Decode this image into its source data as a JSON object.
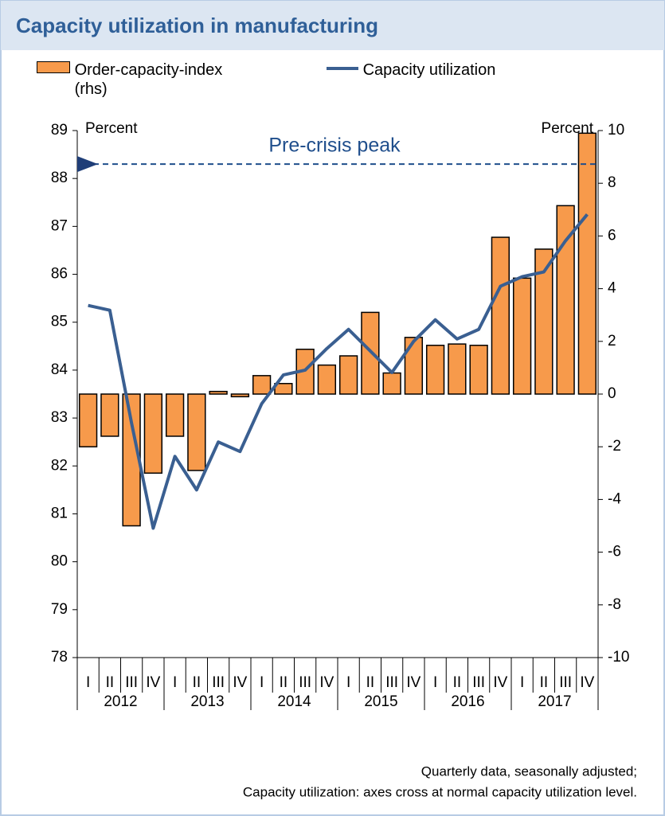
{
  "chart_data": {
    "type": "bar-line",
    "title": "Capacity utilization in manufacturing",
    "ylabel": "Percent",
    "y2label": "Percent",
    "categories": [
      "I",
      "II",
      "III",
      "IV",
      "I",
      "II",
      "III",
      "IV",
      "I",
      "II",
      "III",
      "IV",
      "I",
      "II",
      "III",
      "IV",
      "I",
      "II",
      "III",
      "IV",
      "I",
      "II",
      "III",
      "IV"
    ],
    "year_groups": [
      "2012",
      "2013",
      "2014",
      "2015",
      "2016",
      "2017"
    ],
    "series": [
      {
        "name": "Order-capacity-index (rhs)",
        "type": "bar",
        "axis": "y2",
        "color": "#f79a4b",
        "values": [
          -2.0,
          -1.6,
          -5.0,
          -3.0,
          -1.6,
          -2.9,
          0.1,
          -0.1,
          0.7,
          0.4,
          1.7,
          1.1,
          1.45,
          3.1,
          0.8,
          2.15,
          1.85,
          1.9,
          1.85,
          5.95,
          4.4,
          5.5,
          7.15,
          9.9
        ]
      },
      {
        "name": "Capacity utilization",
        "type": "line",
        "axis": "y",
        "color": "#3a5f91",
        "values": [
          85.35,
          85.25,
          82.9,
          80.7,
          82.2,
          81.5,
          82.5,
          82.3,
          83.3,
          83.9,
          84.0,
          84.45,
          84.85,
          84.4,
          83.95,
          84.6,
          85.05,
          84.65,
          84.85,
          85.75,
          85.95,
          86.05,
          86.7,
          87.25
        ]
      }
    ],
    "ylim": [
      78,
      89
    ],
    "yticks": [
      78,
      79,
      80,
      81,
      82,
      83,
      84,
      85,
      86,
      87,
      88,
      89
    ],
    "y2lim": [
      -10,
      10
    ],
    "y2ticks": [
      -10,
      -8,
      -6,
      -4,
      -2,
      0,
      2,
      4,
      6,
      8,
      10
    ],
    "reference_line": {
      "label": "Pre-crisis peak",
      "value": 88.3,
      "color": "#1f4e8c"
    },
    "notes": [
      "Quarterly data, seasonally adjusted;",
      "Capacity utilization: axes cross at normal capacity utilization level."
    ]
  }
}
